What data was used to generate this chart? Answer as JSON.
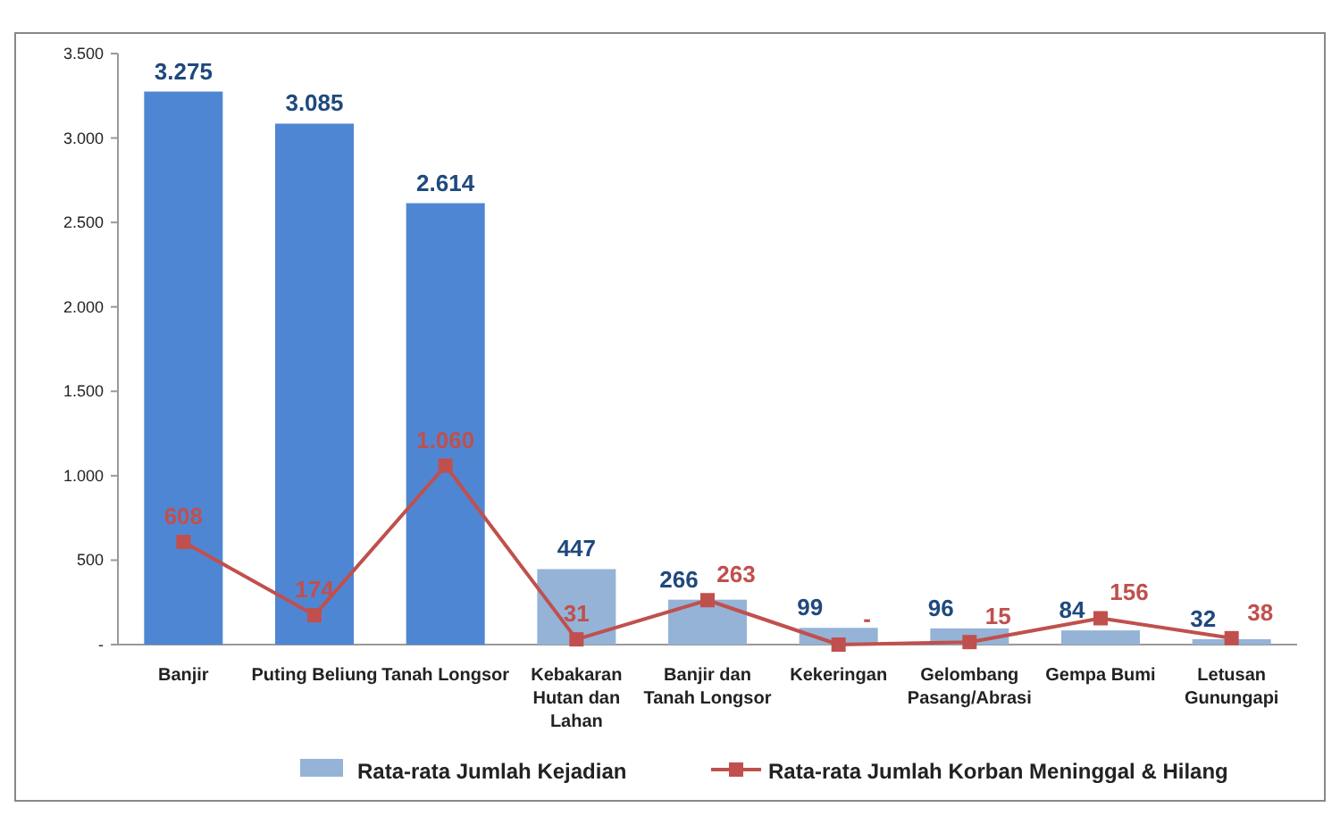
{
  "chart_data": {
    "type": "bar",
    "categories": [
      "Banjir",
      "Puting Beliung",
      "Tanah Longsor",
      "Kebakaran Hutan dan Lahan",
      "Banjir dan Tanah Longsor",
      "Kekeringan",
      "Gelombang Pasang/Abrasi",
      "Gempa Bumi",
      "Letusan Gunungapi"
    ],
    "series": [
      {
        "name": "Rata-rata Jumlah Kejadian",
        "color": "#95b3d7",
        "colors": [
          "#4f86d4",
          "#4f86d4",
          "#4f86d4",
          "#95b3d7",
          "#95b3d7",
          "#95b3d7",
          "#95b3d7",
          "#95b3d7",
          "#95b3d7"
        ],
        "values": [
          3275,
          3085,
          2614,
          447,
          266,
          99,
          96,
          84,
          32
        ],
        "value_labels": [
          "3.275",
          "3.085",
          "2.614",
          "447",
          "266",
          "99",
          "96",
          "84",
          "32"
        ]
      },
      {
        "name": "Rata-rata Jumlah Korban Meninggal & Hilang",
        "type": "line",
        "color": "#c0504d",
        "values": [
          608,
          174,
          1060,
          31,
          263,
          0,
          15,
          156,
          38
        ],
        "value_labels": [
          "608",
          "174",
          "1.060",
          "31",
          "263",
          "-",
          "15",
          "156",
          "38"
        ]
      }
    ],
    "ylim": [
      0,
      3500
    ],
    "yticks": [
      {
        "value": 0,
        "label": "-"
      },
      {
        "value": 500,
        "label": "500"
      },
      {
        "value": 1000,
        "label": "1.000"
      },
      {
        "value": 1500,
        "label": "1.500"
      },
      {
        "value": 2000,
        "label": "2.000"
      },
      {
        "value": 2500,
        "label": "2.500"
      },
      {
        "value": 3000,
        "label": "3.000"
      },
      {
        "value": 3500,
        "label": "3.500"
      }
    ],
    "marker": "square",
    "legend": "bottom",
    "grid": false
  }
}
